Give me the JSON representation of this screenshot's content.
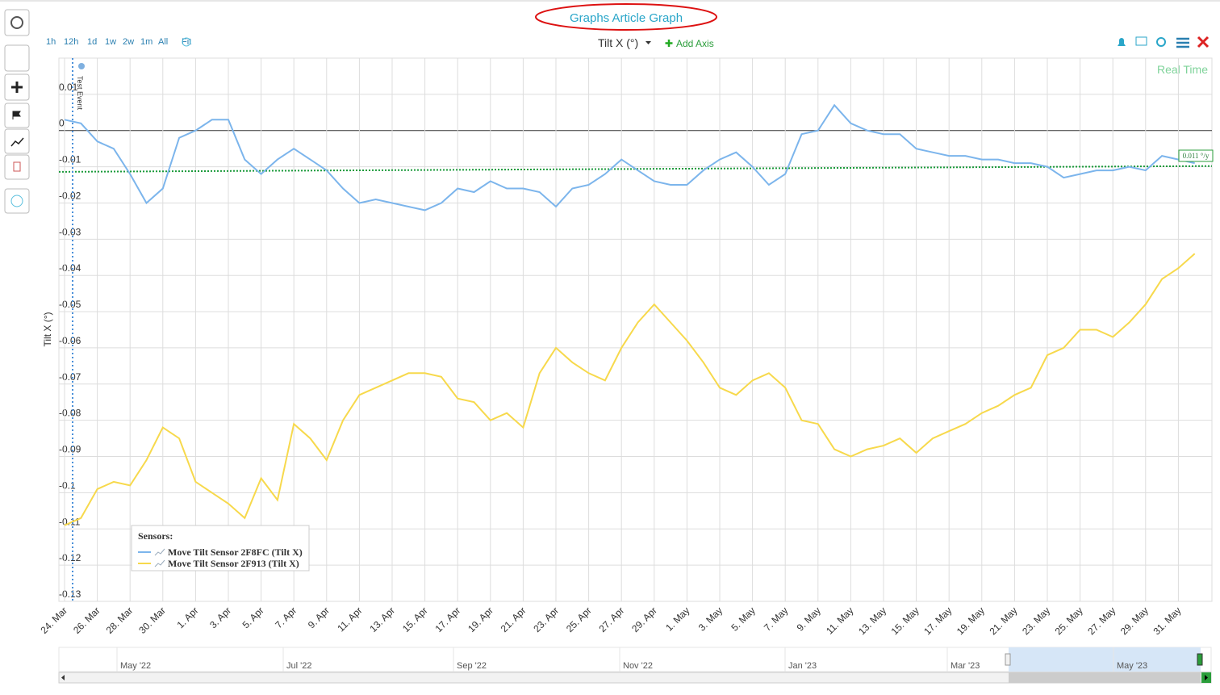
{
  "toolbar": {
    "ranges": [
      "1h",
      "12h",
      "1d",
      "1w",
      "2w",
      "1m",
      "All",
      "Fit"
    ],
    "axis_select": "Tilt X (°)",
    "add_axis": "Add Axis",
    "real_time": "Real Time"
  },
  "event": {
    "label": "Test Event"
  },
  "trend": {
    "label": "0.011 °/y",
    "start": -0.0114,
    "end": -0.0098
  },
  "navigator": {
    "labels": [
      "May '22",
      "Jul '22",
      "Sep '22",
      "Nov '22",
      "Jan '23",
      "Mar '23",
      "May '23"
    ]
  },
  "chart_data": {
    "type": "line",
    "title": "Graphs Article Graph",
    "y_label": "Tilt X (°)",
    "legend_title": "Sensors:",
    "legend": "bottom-left",
    "grid": true,
    "categories": [
      "24. Mar",
      null,
      "26. Mar",
      null,
      "28. Mar",
      null,
      "30. Mar",
      null,
      "1. Apr",
      null,
      "3. Apr",
      null,
      "5. Apr",
      null,
      "7. Apr",
      null,
      "9. Apr",
      null,
      "11. Apr",
      null,
      "13. Apr",
      null,
      "15. Apr",
      null,
      "17. Apr",
      null,
      "19. Apr",
      null,
      "21. Apr",
      null,
      "23. Apr",
      null,
      "25. Apr",
      null,
      "27. Apr",
      null,
      "29. Apr",
      null,
      "1. May",
      null,
      "3. May",
      null,
      "5. May",
      null,
      "7. May",
      null,
      "9. May",
      null,
      "11. May",
      null,
      "13. May",
      null,
      "15. May",
      null,
      "17. May",
      null,
      "19. May",
      null,
      "21. May",
      null,
      "23. May",
      null,
      "25. May",
      null,
      "27. May",
      null,
      "29. May",
      null,
      "31. May",
      null
    ],
    "ylim": [
      -0.13,
      0.02
    ],
    "yticks": [
      0.01,
      0,
      -0.01,
      -0.02,
      -0.03,
      -0.04,
      -0.05,
      -0.06,
      -0.07,
      -0.08,
      -0.09,
      -0.1,
      -0.11,
      -0.12,
      -0.13
    ],
    "series": [
      {
        "name": "Move Tilt Sensor 2F8FC (Tilt X)",
        "color": "#7cb5ec",
        "values": [
          0.003,
          0.002,
          -0.003,
          -0.005,
          -0.012,
          -0.02,
          -0.016,
          -0.002,
          0.0,
          0.003,
          0.003,
          -0.008,
          -0.012,
          -0.008,
          -0.005,
          -0.008,
          -0.011,
          -0.016,
          -0.02,
          -0.019,
          -0.02,
          -0.021,
          -0.022,
          -0.02,
          -0.016,
          -0.017,
          -0.014,
          -0.016,
          -0.016,
          -0.017,
          -0.021,
          -0.016,
          -0.015,
          -0.012,
          -0.008,
          -0.011,
          -0.014,
          -0.015,
          -0.015,
          -0.011,
          -0.008,
          -0.006,
          -0.01,
          -0.015,
          -0.012,
          -0.001,
          0.0,
          0.007,
          0.002,
          0.0,
          -0.001,
          -0.001,
          -0.005,
          -0.006,
          -0.007,
          -0.007,
          -0.008,
          -0.008,
          -0.009,
          -0.009,
          -0.01,
          -0.013,
          -0.012,
          -0.011,
          -0.011,
          -0.01,
          -0.011,
          -0.007,
          -0.008,
          -0.009
        ]
      },
      {
        "name": "Move Tilt Sensor 2F913 (Tilt X)",
        "color": "#f7d94c",
        "values": [
          -0.109,
          -0.107,
          -0.099,
          -0.097,
          -0.098,
          -0.091,
          -0.082,
          -0.085,
          -0.097,
          -0.1,
          -0.103,
          -0.107,
          -0.096,
          -0.102,
          -0.081,
          -0.085,
          -0.091,
          -0.08,
          -0.073,
          -0.071,
          -0.069,
          -0.067,
          -0.067,
          -0.068,
          -0.074,
          -0.075,
          -0.08,
          -0.078,
          -0.082,
          -0.067,
          -0.06,
          -0.064,
          -0.067,
          -0.069,
          -0.06,
          -0.053,
          -0.048,
          -0.053,
          -0.058,
          -0.064,
          -0.071,
          -0.073,
          -0.069,
          -0.067,
          -0.071,
          -0.08,
          -0.081,
          -0.088,
          -0.09,
          -0.088,
          -0.087,
          -0.085,
          -0.089,
          -0.085,
          -0.083,
          -0.081,
          -0.078,
          -0.076,
          -0.073,
          -0.071,
          -0.062,
          -0.06,
          -0.055,
          -0.055,
          -0.057,
          -0.053,
          -0.048,
          -0.041,
          -0.038,
          -0.034
        ]
      }
    ]
  }
}
